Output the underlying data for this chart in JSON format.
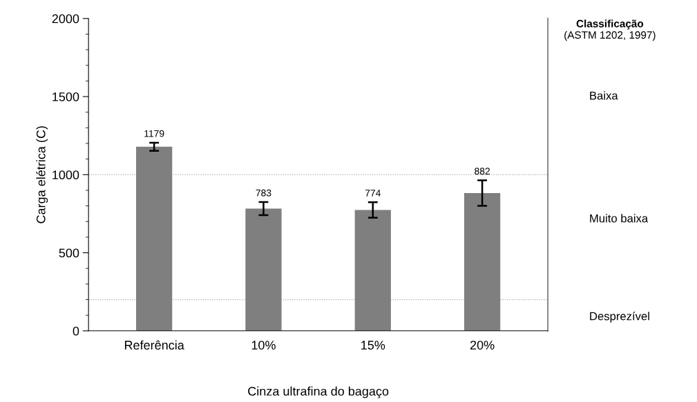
{
  "chart_data": {
    "type": "bar",
    "xlabel": "Cinza ultrafina do bagaço",
    "ylabel": "Carga elétrica (C)",
    "categories": [
      "Referência",
      "10%",
      "15%",
      "20%"
    ],
    "values": [
      1179,
      783,
      774,
      882
    ],
    "color": "#7f7f7f",
    "errors": [
      26,
      42,
      50,
      82
    ],
    "data_labels": true,
    "ylim": [
      0,
      2000
    ],
    "yticks": [
      0,
      500,
      1000,
      1500,
      2000
    ],
    "ref_lines": [
      {
        "axis": "y",
        "value": 1000,
        "color": "#a6a6a6",
        "line_style": "dotted"
      },
      {
        "axis": "y",
        "value": 200,
        "color": "#a6a6a6",
        "line_style": "dotted"
      }
    ],
    "annotations": [
      "Classificação",
      "(ASTM 1202, 1997)",
      "Baixa",
      "Muito baixa",
      "Desprezível"
    ],
    "grid": false
  }
}
